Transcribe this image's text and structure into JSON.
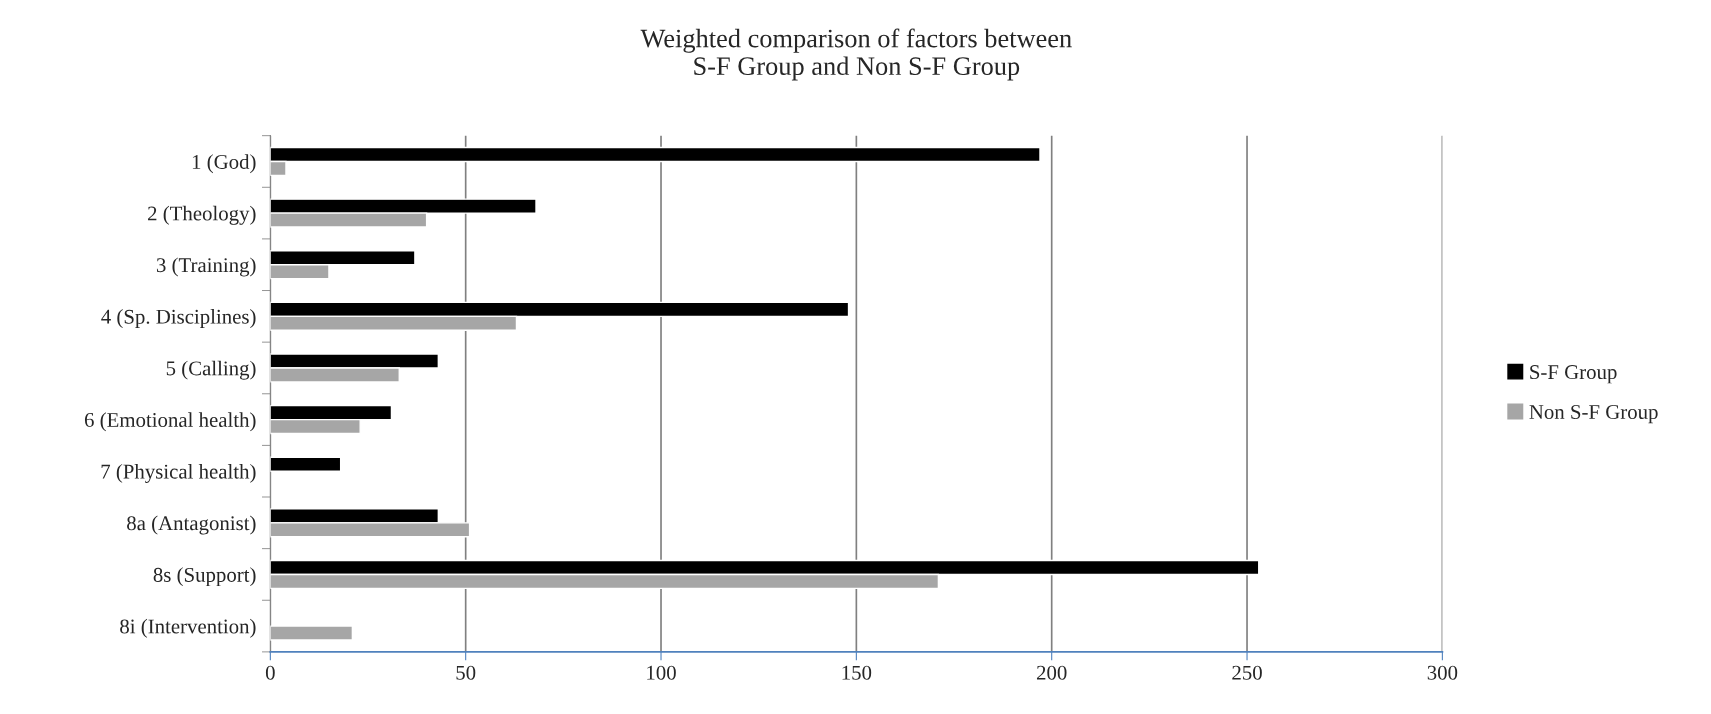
{
  "chart_data": {
    "type": "bar",
    "orientation": "horizontal",
    "title": "Weighted comparison of factors between\nS-F Group and Non S-F Group",
    "categories": [
      "1 (God)",
      "2 (Theology)",
      "3 (Training)",
      "4 (Sp. Disciplines)",
      "5 (Calling)",
      "6 (Emotional health)",
      "7 (Physical health)",
      "8a (Antagonist)",
      "8s (Support)",
      "8i (Intervention)"
    ],
    "series": [
      {
        "name": "S-F Group",
        "color": "#000000",
        "values": [
          197,
          68,
          37,
          148,
          43,
          31,
          18,
          43,
          253,
          null
        ]
      },
      {
        "name": "Non S-F Group",
        "color": "#a6a6a6",
        "values": [
          4,
          40,
          15,
          63,
          33,
          23,
          null,
          51,
          171,
          21
        ]
      }
    ],
    "xlim": [
      0,
      300
    ],
    "xticks": [
      0,
      50,
      100,
      150,
      200,
      250,
      300
    ],
    "grid": "x",
    "legend": "right"
  }
}
